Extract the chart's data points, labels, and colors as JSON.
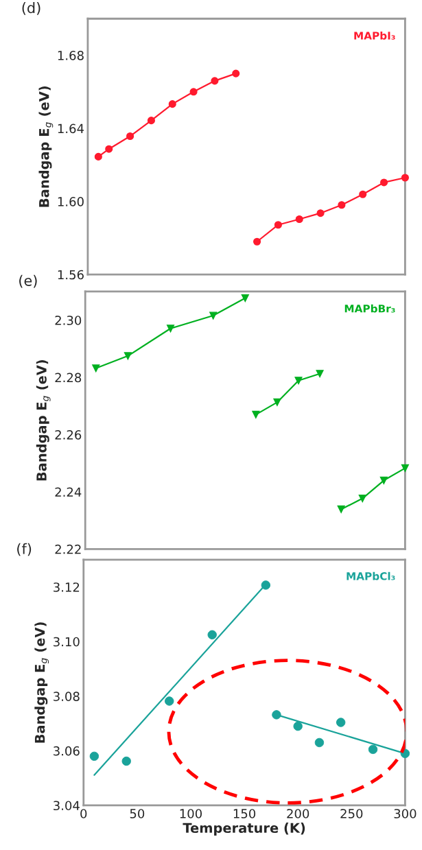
{
  "chart_data": [
    {
      "type": "line",
      "title": "(d)",
      "ylabel": "Bandgap E$_{g}$ (eV)",
      "xlim": [
        0,
        300
      ],
      "xticks": [
        0,
        50,
        100,
        150,
        200,
        250,
        300
      ],
      "ylim": [
        1.56,
        1.7
      ],
      "yticks": [
        1.56,
        {
          "value": 1.6,
          "label": "1.60"
        },
        1.64,
        1.68
      ],
      "tick_labels": "y",
      "marker": "circle",
      "series": [
        {
          "name": "MAPbI₃",
          "color": "#ff1a2e",
          "x": [
            10,
            20,
            40,
            60,
            80,
            100,
            120,
            140
          ],
          "values": [
            1.6245,
            1.6287,
            1.6357,
            1.6443,
            1.6533,
            1.66,
            1.666,
            1.67
          ]
        },
        {
          "color": "#ff1a2e",
          "x": [
            160,
            180,
            200,
            220,
            240,
            260,
            280,
            300
          ],
          "values": [
            1.578,
            1.5872,
            1.5903,
            1.5936,
            1.5981,
            1.6039,
            1.6104,
            1.613
          ]
        }
      ]
    },
    {
      "type": "line",
      "title": "(e)",
      "ylabel": "Bandgap E$_{g}$ (eV)",
      "xlim": [
        0,
        300
      ],
      "xticks": [
        0,
        50,
        100,
        150,
        200,
        250,
        300
      ],
      "ylim": [
        2.22,
        2.31
      ],
      "yticks": [
        2.22,
        2.24,
        2.26,
        2.28,
        {
          "value": 2.3,
          "label": "2.30"
        }
      ],
      "tick_labels": "y",
      "marker": "triangle",
      "series": [
        {
          "name": "MAPbBr₃",
          "color": "#00b020",
          "x": [
            10,
            40,
            80,
            120,
            150
          ],
          "values": [
            2.2832,
            2.2875,
            2.2971,
            2.3016,
            2.3077
          ]
        },
        {
          "color": "#00b020",
          "x": [
            160,
            180,
            200,
            220
          ],
          "values": [
            2.267,
            2.2713,
            2.2789,
            2.2813
          ]
        },
        {
          "color": "#00b020",
          "x": [
            240,
            260,
            280,
            300
          ],
          "values": [
            2.2339,
            2.2377,
            2.244,
            2.2483
          ]
        }
      ]
    },
    {
      "type": "scatter",
      "title": "(f)",
      "xlabel": "Temperature (K)",
      "ylabel": "Bandgap E$_{g}$ (eV)",
      "xlim": [
        0,
        300
      ],
      "xticks": [
        0,
        50,
        100,
        150,
        200,
        250,
        300
      ],
      "ylim": [
        3.04,
        3.13
      ],
      "yticks": [
        3.04,
        3.06,
        3.08,
        {
          "value": 3.1,
          "label": "3.10"
        },
        3.12
      ],
      "marker": "circle",
      "series": [
        {
          "name": "MAPbCl₃",
          "color": "#1aa39a",
          "x": [
            10,
            40,
            80,
            120,
            170
          ],
          "values": [
            3.058,
            3.0562,
            3.0782,
            3.1025,
            3.1207
          ]
        },
        {
          "color": "#1aa39a",
          "x": [
            180,
            200,
            220,
            240,
            270,
            300
          ],
          "values": [
            3.0732,
            3.069,
            3.063,
            3.0704,
            3.0605,
            3.059
          ]
        },
        {
          "type": "line",
          "marker": "none",
          "color": "#1aa39a",
          "x": [
            10,
            170
          ],
          "values": [
            3.0511,
            3.121
          ]
        },
        {
          "type": "line",
          "marker": "none",
          "color": "#1aa39a",
          "x": [
            180,
            300
          ],
          "values": [
            3.0732,
            3.059
          ]
        }
      ]
    }
  ]
}
